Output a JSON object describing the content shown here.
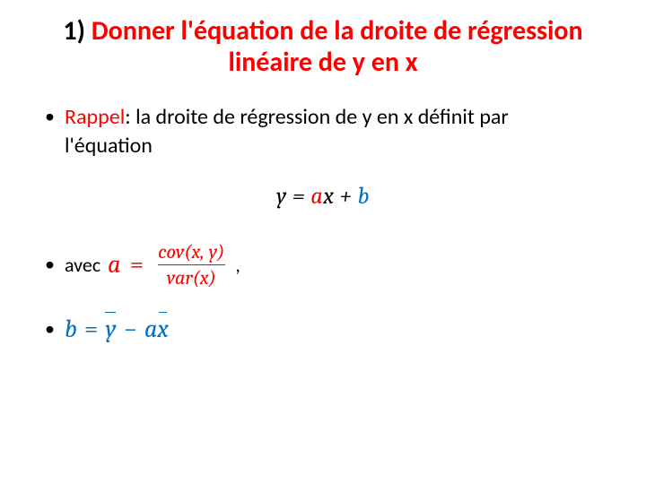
{
  "colors": {
    "accent_red": "#ff0000",
    "accent_blue": "#0070c0",
    "text": "#000000",
    "background": "#ffffff"
  },
  "typography": {
    "title_fontsize": 30,
    "body_fontsize": 24,
    "math_fontsize": 26,
    "frac_fontsize": 22
  },
  "title": {
    "number": "1) ",
    "text": "Donner l'équation de la droite de régression linéaire de y en x"
  },
  "bullet1": {
    "rappel": "Rappel",
    "colon": ": ",
    "text": "la droite de régression de y en x définit par l'équation"
  },
  "equation": {
    "y": "y",
    "eq": " = ",
    "a": "a",
    "x": "x",
    "plus": " + ",
    "b": "b"
  },
  "bullet2": {
    "avec": "avec",
    "a": "a",
    "eq": "=",
    "numerator": "cov(x, y)",
    "denominator": "var(x)",
    "comma": ","
  },
  "bullet3": {
    "b": "b",
    "eq": "=",
    "ybar": "y",
    "minus": "−",
    "a": "a",
    "xbar": "x"
  }
}
